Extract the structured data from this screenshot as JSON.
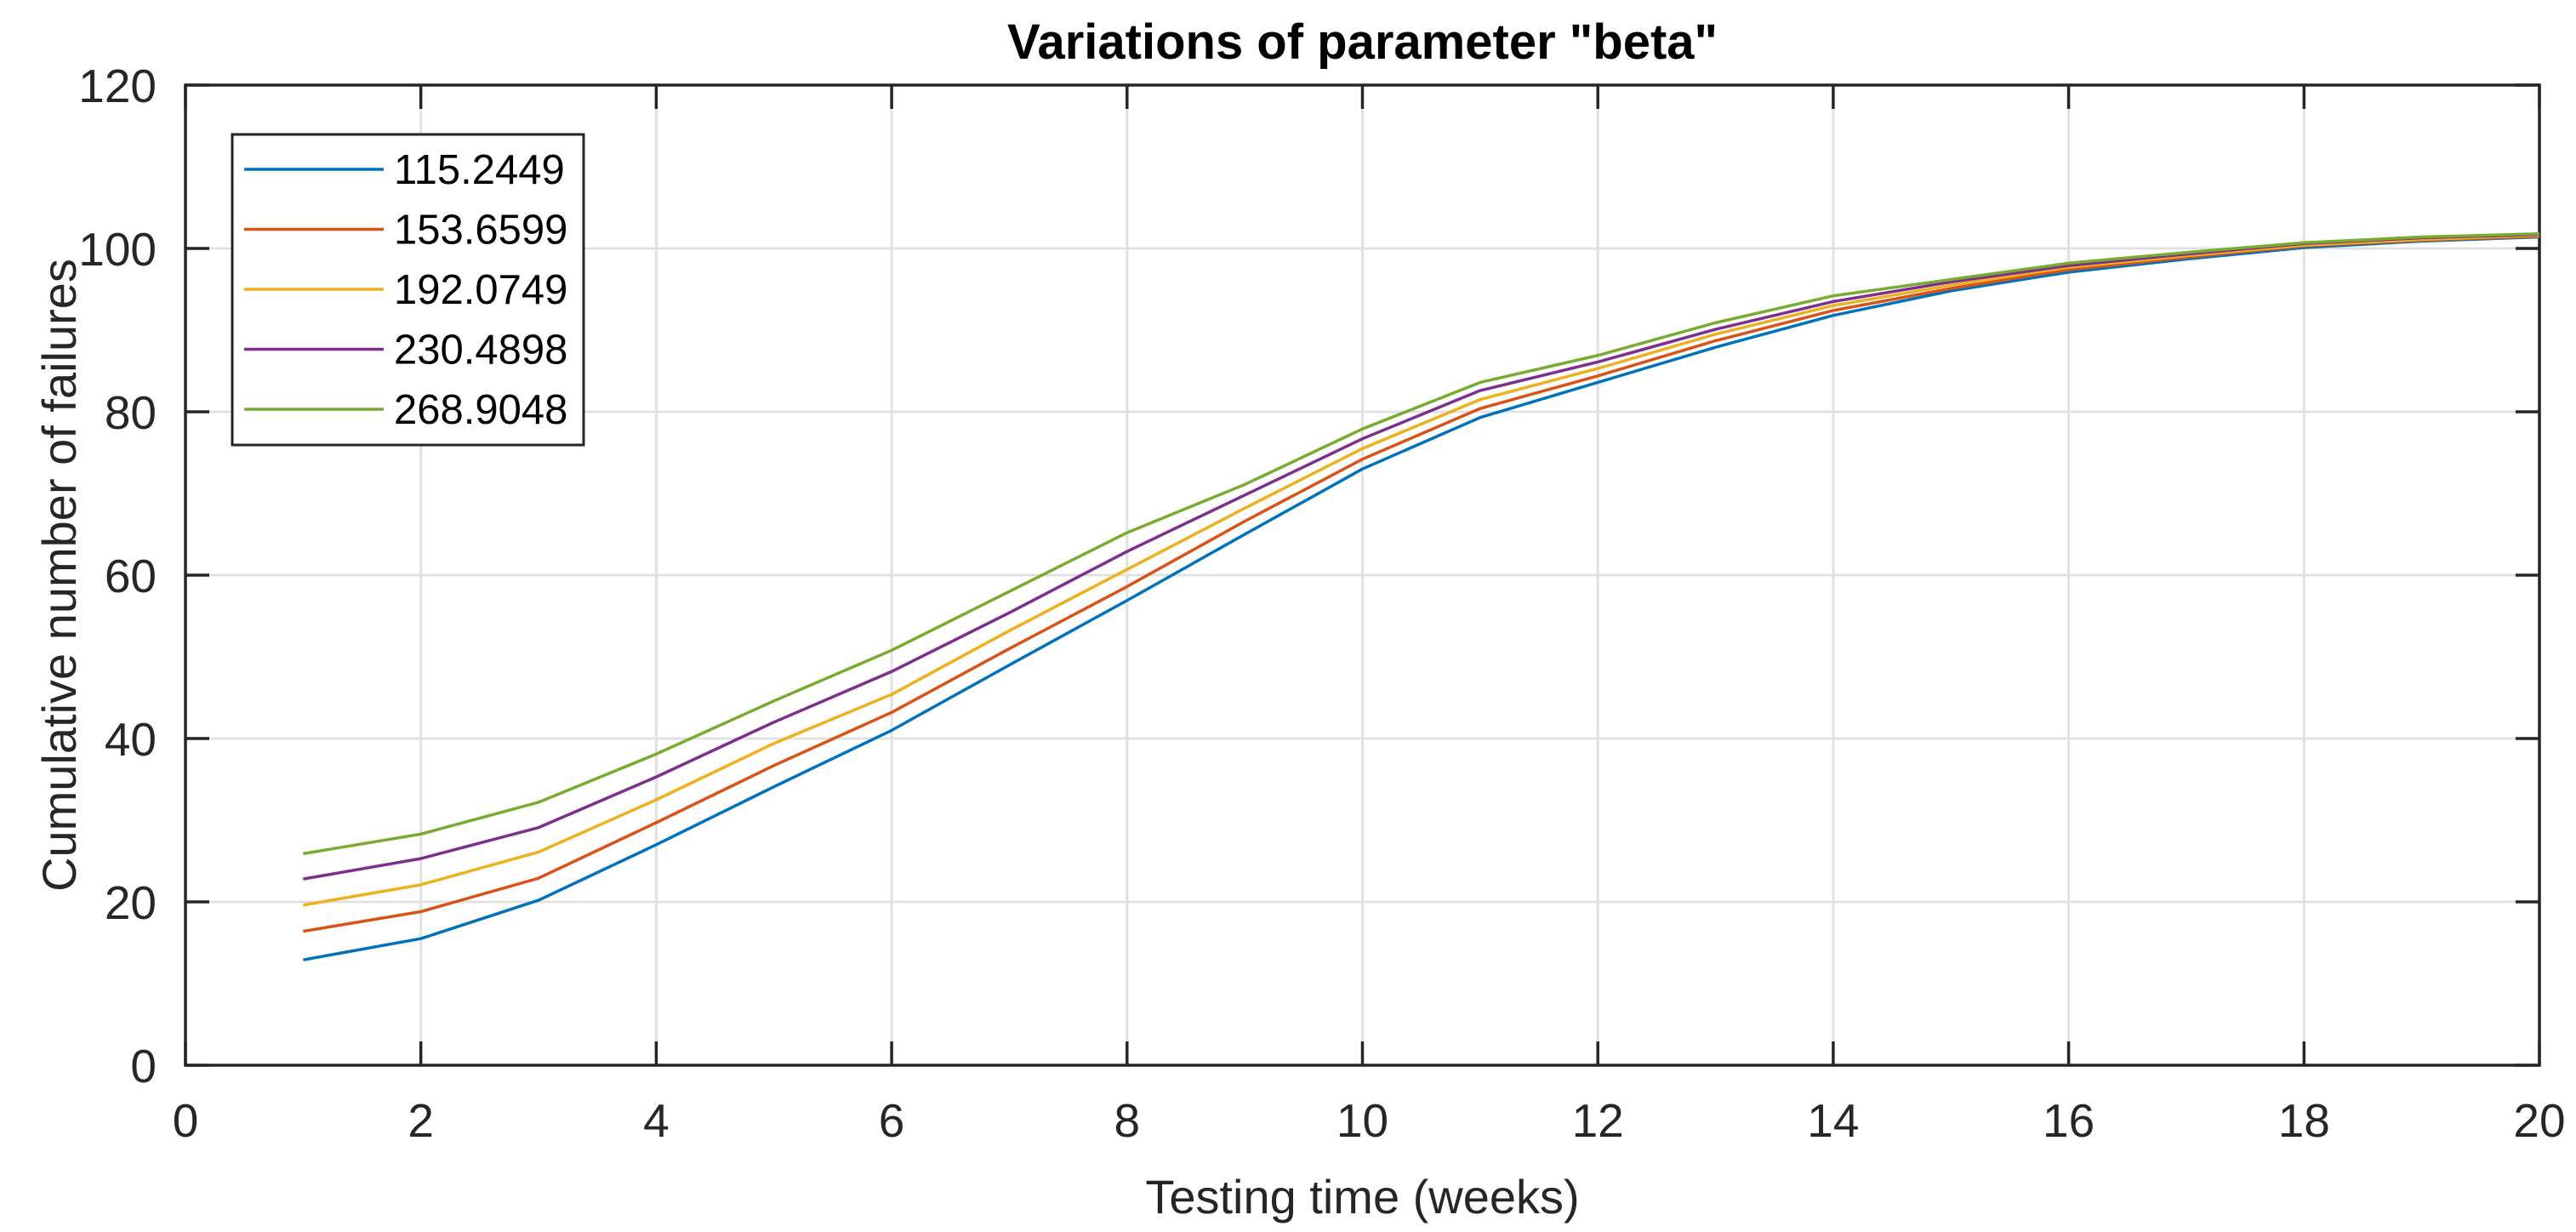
{
  "figure": {
    "title": "Variations of parameter \"beta\"",
    "xlabel": "Testing time (weeks)",
    "ylabel": "Cumulative number of failures"
  },
  "chart_data": {
    "type": "line",
    "title": "Variations of parameter \"beta\"",
    "xlabel": "Testing time (weeks)",
    "ylabel": "Cumulative number of failures",
    "xlim": [
      0,
      20
    ],
    "ylim": [
      0,
      120
    ],
    "xticks": [
      0,
      2,
      4,
      6,
      8,
      10,
      12,
      14,
      16,
      18,
      20
    ],
    "yticks": [
      0,
      20,
      40,
      60,
      80,
      100,
      120
    ],
    "grid": true,
    "legend_position": "top-left-inside",
    "axis_color": "#262626",
    "grid_color": "#E0E0E0",
    "background_color": "#FFFFFF",
    "x": [
      1,
      2,
      3,
      4,
      5,
      6,
      7,
      8,
      9,
      10,
      11,
      12,
      13,
      14,
      15,
      16,
      17,
      18,
      19,
      20
    ],
    "series": [
      {
        "name": "115.2449",
        "color": "#0072BD",
        "values": [
          12.9,
          15.5,
          20.2,
          27.0,
          34.1,
          41.0,
          49.0,
          56.9,
          65.0,
          73.0,
          79.3,
          83.6,
          87.9,
          91.8,
          94.8,
          97.1,
          98.7,
          100.1,
          100.9,
          101.4
        ]
      },
      {
        "name": "153.6599",
        "color": "#D95319",
        "values": [
          16.4,
          18.8,
          22.9,
          29.7,
          36.7,
          43.2,
          51.0,
          58.6,
          66.6,
          74.2,
          80.4,
          84.4,
          88.7,
          92.4,
          95.1,
          97.4,
          98.9,
          100.3,
          101.0,
          101.5
        ]
      },
      {
        "name": "192.0749",
        "color": "#EDB120",
        "values": [
          19.6,
          22.1,
          26.1,
          32.5,
          39.4,
          45.4,
          53.2,
          60.7,
          68.2,
          75.5,
          81.5,
          85.3,
          89.5,
          93.0,
          95.5,
          97.7,
          99.1,
          100.4,
          101.1,
          101.6
        ]
      },
      {
        "name": "230.4898",
        "color": "#7E2F8E",
        "values": [
          22.8,
          25.3,
          29.1,
          35.3,
          42.0,
          48.2,
          55.4,
          62.9,
          69.8,
          76.7,
          82.6,
          86.1,
          90.1,
          93.5,
          95.9,
          97.9,
          99.3,
          100.6,
          101.3,
          101.7
        ]
      },
      {
        "name": "268.9048",
        "color": "#77AC30",
        "values": [
          25.9,
          28.3,
          32.2,
          38.1,
          44.6,
          50.8,
          58.0,
          65.2,
          71.1,
          77.9,
          83.6,
          86.9,
          90.9,
          94.2,
          96.2,
          98.2,
          99.5,
          100.7,
          101.4,
          101.8
        ]
      }
    ]
  }
}
